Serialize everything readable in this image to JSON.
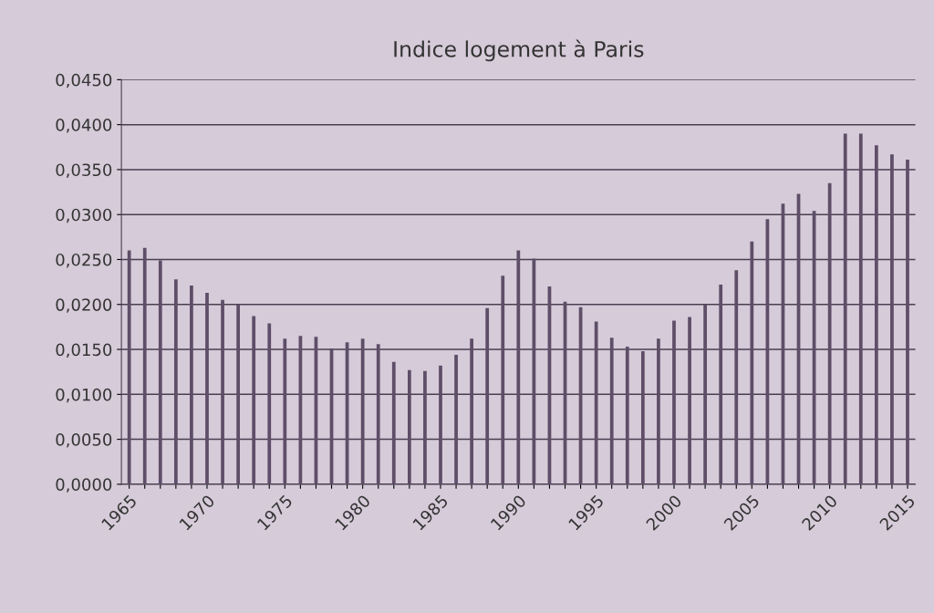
{
  "chart_data": {
    "type": "bar",
    "title": "Indice logement à Paris",
    "categories": [
      "1965",
      null,
      null,
      null,
      null,
      "1970",
      null,
      null,
      null,
      null,
      "1975",
      null,
      null,
      null,
      null,
      "1980",
      null,
      null,
      null,
      null,
      "1985",
      null,
      null,
      null,
      null,
      "1990",
      null,
      null,
      null,
      null,
      "1995",
      null,
      null,
      null,
      null,
      "2000",
      null,
      null,
      null,
      null,
      "2005",
      null,
      null,
      null,
      null,
      "2010",
      null,
      null,
      null,
      null,
      "2015"
    ],
    "values": [
      0.026,
      0.0263,
      0.0249,
      0.0228,
      0.0221,
      0.0213,
      0.0205,
      0.02,
      0.0187,
      0.0179,
      0.0162,
      0.0165,
      0.0164,
      0.0151,
      0.0158,
      0.0162,
      0.0156,
      0.0136,
      0.0127,
      0.0126,
      0.0132,
      0.0144,
      0.0162,
      0.0196,
      0.0232,
      0.026,
      0.0251,
      0.022,
      0.0203,
      0.0197,
      0.0181,
      0.0163,
      0.0153,
      0.0148,
      0.0162,
      0.0182,
      0.0186,
      0.02,
      0.0222,
      0.0238,
      0.027,
      0.0295,
      0.0312,
      0.0323,
      0.0304,
      0.0335,
      0.039,
      0.039,
      0.0377,
      0.0367,
      0.0361
    ],
    "color": "#5e4e68",
    "ylim": [
      0,
      0.045
    ],
    "yticks": [
      {
        "value": 0,
        "label": "0,0000"
      },
      {
        "value": 0.005,
        "label": "0,0050"
      },
      {
        "value": 0.01,
        "label": "0,0100"
      },
      {
        "value": 0.015,
        "label": "0,0150"
      },
      {
        "value": 0.02,
        "label": "0,0200"
      },
      {
        "value": 0.025,
        "label": "0,0250"
      },
      {
        "value": 0.03,
        "label": "0,0300"
      },
      {
        "value": 0.035,
        "label": "0,0350"
      },
      {
        "value": 0.04,
        "label": "0,0400"
      },
      {
        "value": 0.045,
        "label": "0,0450"
      }
    ],
    "grid": "y"
  }
}
